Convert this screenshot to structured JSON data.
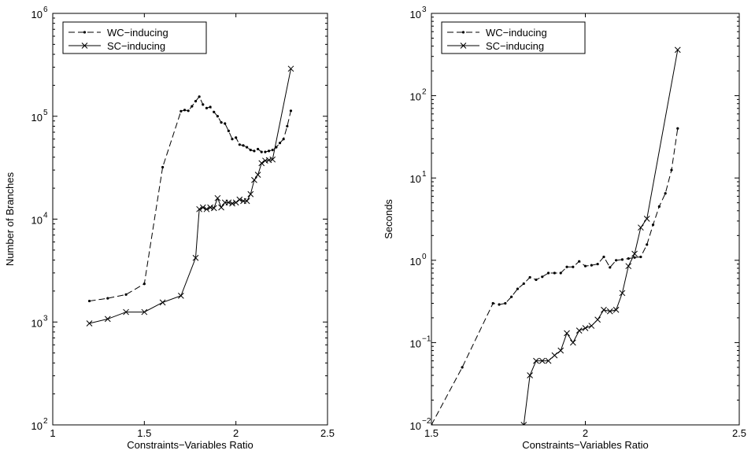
{
  "chart_data": [
    {
      "type": "line",
      "title": "",
      "xlabel": "Constraints−Variables Ratio",
      "ylabel": "Number of Branches",
      "xlim": [
        1,
        2.5
      ],
      "ylim": [
        100,
        1000000
      ],
      "yscale": "log",
      "x_ticks": [
        1,
        1.5,
        2,
        2.5
      ],
      "x_tick_labels": [
        "1",
        "1.5",
        "2",
        "2.5"
      ],
      "y_ticks": [
        100,
        1000,
        10000,
        100000,
        1000000
      ],
      "y_tick_labels": [
        {
          "base": "10",
          "exp": "2"
        },
        {
          "base": "10",
          "exp": "3"
        },
        {
          "base": "10",
          "exp": "4"
        },
        {
          "base": "10",
          "exp": "5"
        },
        {
          "base": "10",
          "exp": "6"
        }
      ],
      "legend_position": "top-left",
      "grid": false,
      "series": [
        {
          "name": "WC−inducing",
          "style": "dashed-dot",
          "x": [
            1.2,
            1.3,
            1.4,
            1.5,
            1.6,
            1.7,
            1.72,
            1.74,
            1.76,
            1.78,
            1.8,
            1.82,
            1.84,
            1.86,
            1.88,
            1.9,
            1.92,
            1.94,
            1.96,
            1.98,
            2.0,
            2.02,
            2.04,
            2.06,
            2.08,
            2.1,
            2.12,
            2.14,
            2.16,
            2.18,
            2.2,
            2.22,
            2.24,
            2.26,
            2.28,
            2.3
          ],
          "y": [
            1600,
            1700,
            1850,
            2350,
            32000,
            112000,
            115000,
            113000,
            125000,
            140000,
            155000,
            130000,
            120000,
            123000,
            110000,
            100000,
            87000,
            85000,
            72000,
            60000,
            62000,
            53000,
            52000,
            50000,
            47000,
            46000,
            48000,
            45000,
            45000,
            46000,
            47000,
            50000,
            55000,
            60000,
            80000,
            113000
          ]
        },
        {
          "name": "SC−inducing",
          "style": "solid-x",
          "x": [
            1.2,
            1.3,
            1.4,
            1.5,
            1.6,
            1.7,
            1.78,
            1.8,
            1.82,
            1.84,
            1.86,
            1.88,
            1.9,
            1.92,
            1.94,
            1.96,
            1.98,
            2.0,
            2.02,
            2.04,
            2.06,
            2.08,
            2.1,
            2.12,
            2.14,
            2.16,
            2.18,
            2.2,
            2.3
          ],
          "y": [
            970,
            1070,
            1250,
            1250,
            1550,
            1800,
            4200,
            12500,
            13000,
            12500,
            13000,
            12800,
            16000,
            13000,
            14500,
            14500,
            14200,
            14500,
            15500,
            15000,
            15000,
            17500,
            24000,
            27000,
            35000,
            37000,
            37500,
            38000,
            290000
          ]
        }
      ]
    },
    {
      "type": "line",
      "title": "",
      "xlabel": "Constraints−Variables Ratio",
      "ylabel": "Seconds",
      "xlim": [
        1.5,
        2.5
      ],
      "ylim": [
        0.01,
        1000
      ],
      "yscale": "log",
      "x_ticks": [
        1.5,
        2,
        2.5
      ],
      "x_tick_labels": [
        "1.5",
        "2",
        "2.5"
      ],
      "y_ticks": [
        0.01,
        0.1,
        1,
        10,
        100,
        1000
      ],
      "y_tick_labels": [
        {
          "base": "10",
          "exp": "−2"
        },
        {
          "base": "10",
          "exp": "−1"
        },
        {
          "base": "10",
          "exp": "0"
        },
        {
          "base": "10",
          "exp": "1"
        },
        {
          "base": "10",
          "exp": "2"
        },
        {
          "base": "10",
          "exp": "3"
        }
      ],
      "legend_position": "top-left",
      "grid": false,
      "series": [
        {
          "name": "WC−inducing",
          "style": "dashed-dot",
          "x": [
            1.5,
            1.6,
            1.7,
            1.72,
            1.74,
            1.76,
            1.78,
            1.8,
            1.82,
            1.84,
            1.86,
            1.88,
            1.9,
            1.92,
            1.94,
            1.96,
            1.98,
            2.0,
            2.02,
            2.04,
            2.06,
            2.08,
            2.1,
            2.12,
            2.14,
            2.16,
            2.18,
            2.2,
            2.22,
            2.24,
            2.26,
            2.28,
            2.3
          ],
          "y": [
            0.01,
            0.05,
            0.3,
            0.29,
            0.3,
            0.36,
            0.45,
            0.52,
            0.62,
            0.58,
            0.63,
            0.7,
            0.7,
            0.7,
            0.83,
            0.83,
            0.97,
            0.85,
            0.87,
            0.9,
            1.1,
            0.82,
            1.0,
            1.02,
            1.05,
            1.08,
            1.1,
            1.55,
            2.7,
            4.5,
            6.5,
            12.5,
            40
          ]
        },
        {
          "name": "SC−inducing",
          "style": "solid-x",
          "x": [
            1.8,
            1.82,
            1.84,
            1.86,
            1.88,
            1.9,
            1.92,
            1.94,
            1.96,
            1.98,
            2.0,
            2.02,
            2.04,
            2.06,
            2.08,
            2.1,
            2.12,
            2.14,
            2.16,
            2.18,
            2.2,
            2.3
          ],
          "y": [
            0.01,
            0.04,
            0.06,
            0.06,
            0.06,
            0.07,
            0.08,
            0.13,
            0.1,
            0.14,
            0.15,
            0.16,
            0.19,
            0.25,
            0.24,
            0.25,
            0.4,
            0.85,
            1.2,
            2.5,
            3.2,
            360
          ]
        }
      ]
    }
  ]
}
